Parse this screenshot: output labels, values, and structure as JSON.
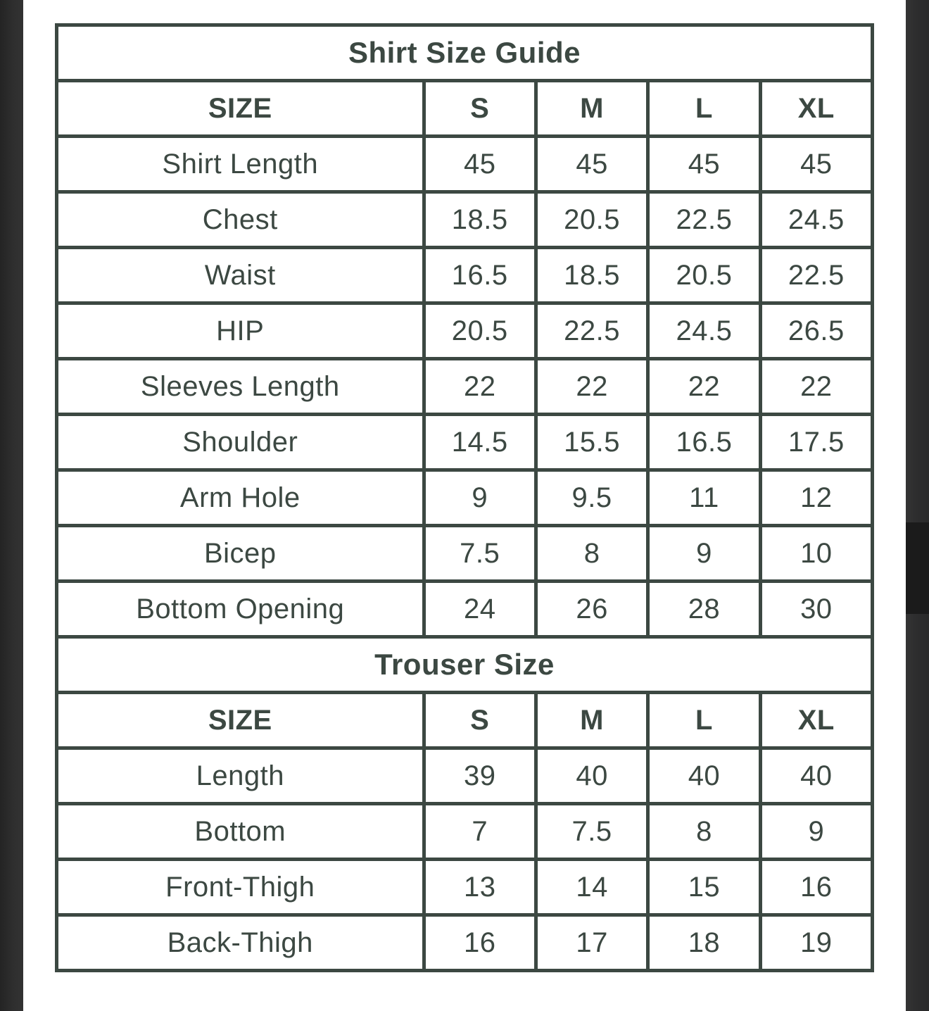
{
  "colors": {
    "background": "#ffffff",
    "table_border": "#3c4842",
    "text": "#3c4842",
    "side_bar_left": "#2e2e2e",
    "side_bar_right": "#2d2d2e",
    "scrollbar_thumb": "#1b1b1b"
  },
  "shirt_table": {
    "title": "Shirt Size Guide",
    "columns": [
      "SIZE",
      "S",
      "M",
      "L",
      "XL"
    ],
    "rows": [
      {
        "label": "Shirt Length",
        "values": [
          "45",
          "45",
          "45",
          "45"
        ]
      },
      {
        "label": "Chest",
        "values": [
          "18.5",
          "20.5",
          "22.5",
          "24.5"
        ]
      },
      {
        "label": "Waist",
        "values": [
          "16.5",
          "18.5",
          "20.5",
          "22.5"
        ]
      },
      {
        "label": "HIP",
        "values": [
          "20.5",
          "22.5",
          "24.5",
          "26.5"
        ]
      },
      {
        "label": "Sleeves Length",
        "values": [
          "22",
          "22",
          "22",
          "22"
        ]
      },
      {
        "label": "Shoulder",
        "values": [
          "14.5",
          "15.5",
          "16.5",
          "17.5"
        ]
      },
      {
        "label": "Arm Hole",
        "values": [
          "9",
          "9.5",
          "11",
          "12"
        ]
      },
      {
        "label": "Bicep",
        "values": [
          "7.5",
          "8",
          "9",
          "10"
        ]
      },
      {
        "label": "Bottom Opening",
        "values": [
          "24",
          "26",
          "28",
          "30"
        ]
      }
    ]
  },
  "trouser_table": {
    "title": "Trouser Size",
    "columns": [
      "SIZE",
      "S",
      "M",
      "L",
      "XL"
    ],
    "rows": [
      {
        "label": "Length",
        "values": [
          "39",
          "40",
          "40",
          "40"
        ]
      },
      {
        "label": "Bottom",
        "values": [
          "7",
          "7.5",
          "8",
          "9"
        ]
      },
      {
        "label": "Front-Thigh",
        "values": [
          "13",
          "14",
          "15",
          "16"
        ]
      },
      {
        "label": "Back-Thigh",
        "values": [
          "16",
          "17",
          "18",
          "19"
        ]
      }
    ]
  }
}
